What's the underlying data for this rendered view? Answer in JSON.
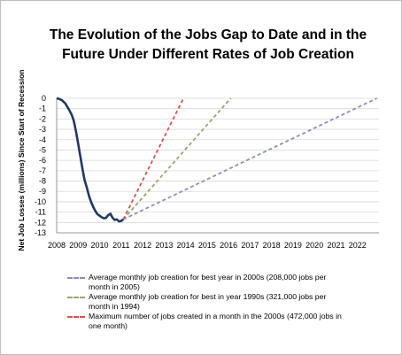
{
  "chart_data": {
    "type": "line",
    "title_line1": "The Evolution of the Jobs Gap to Date and in the",
    "title_line2": "Future Under Different Rates of Job Creation",
    "ylabel": "Net Job Losses (millions) Since Start of Recession",
    "xlabel": "",
    "xlim": [
      2008,
      2023
    ],
    "ylim": [
      -13,
      0
    ],
    "y_ticks": [
      0,
      -1,
      -2,
      -3,
      -4,
      -5,
      -6,
      -7,
      -8,
      -9,
      -10,
      -11,
      -12,
      -13
    ],
    "x_ticks": [
      2008,
      2009,
      2010,
      2011,
      2012,
      2013,
      2014,
      2015,
      2016,
      2017,
      2018,
      2019,
      2020,
      2021,
      2022
    ],
    "grid": "horizontal",
    "legend_position": "bottom",
    "series": [
      {
        "name": "",
        "color": "#1f3864",
        "style": "solid",
        "x": [
          2008.0,
          2008.1,
          2008.25,
          2008.4,
          2008.55,
          2008.7,
          2008.8,
          2008.9,
          2009.0,
          2009.1,
          2009.2,
          2009.3,
          2009.4,
          2009.5,
          2009.6,
          2009.7,
          2009.8,
          2009.9,
          2010.0,
          2010.1,
          2010.2,
          2010.3,
          2010.4,
          2010.5,
          2010.6,
          2010.7,
          2010.8,
          2010.9,
          2011.0,
          2011.1
        ],
        "y": [
          0.0,
          -0.05,
          -0.2,
          -0.5,
          -1.0,
          -1.6,
          -2.2,
          -3.2,
          -4.4,
          -5.6,
          -6.8,
          -7.9,
          -8.6,
          -9.4,
          -10.0,
          -10.5,
          -10.9,
          -11.2,
          -11.35,
          -11.5,
          -11.6,
          -11.55,
          -11.3,
          -11.15,
          -11.55,
          -11.75,
          -11.7,
          -11.9,
          -11.85,
          -11.7
        ]
      },
      {
        "name": "Average monthly job creation for best year in 2000s (208,000 jobs per month in 2005)",
        "color": "#8c8fb8",
        "style": "dashed",
        "x": [
          2011.1,
          2022.9
        ],
        "y": [
          -11.7,
          0
        ]
      },
      {
        "name": "Average monthly job creation for best in year 1990s (321,000 jobs per month in 1994)",
        "color": "#9aa56a",
        "style": "dashed",
        "x": [
          2011.1,
          2016.1
        ],
        "y": [
          -11.7,
          0
        ]
      },
      {
        "name": "Maximum number of jobs created in a month in the 2000s (472,000 jobs in one month)",
        "color": "#d9534f",
        "style": "dashed",
        "x": [
          2011.1,
          2013.9
        ],
        "y": [
          -11.7,
          0
        ]
      }
    ]
  },
  "legend": [
    {
      "line1": "Average monthly job creation for best year in 2000s (208,000 jobs per",
      "line2": "month in 2005)",
      "color": "#8c8fb8"
    },
    {
      "line1": "Average monthly job creation for best in year 1990s (321,000 jobs per",
      "line2": "month in 1994)",
      "color": "#9aa56a"
    },
    {
      "line1": "Maximum number of jobs created  in a month in the 2000s (472,000 jobs in",
      "line2": "one month)",
      "color": "#d9534f"
    }
  ]
}
